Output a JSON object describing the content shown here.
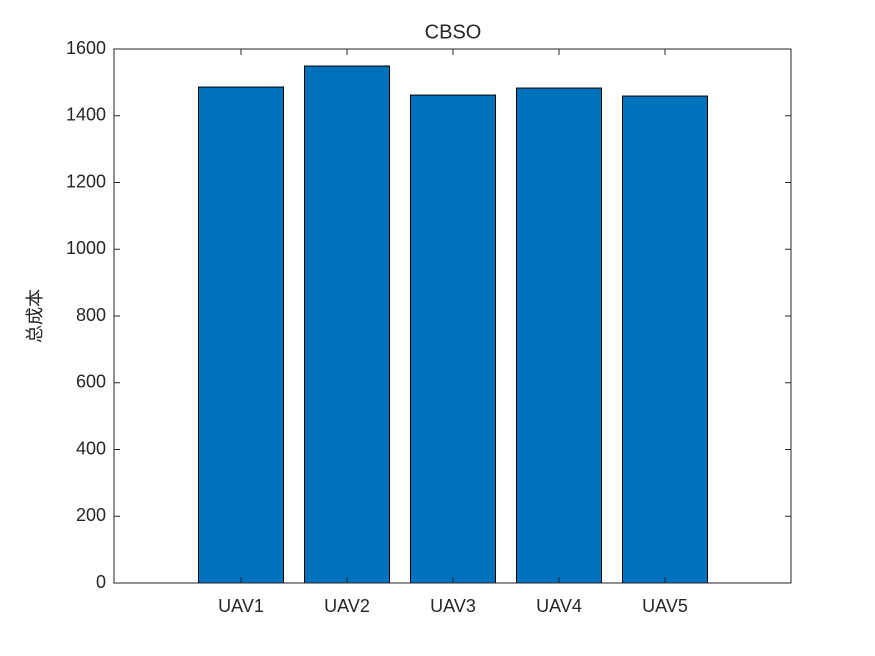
{
  "chart_data": {
    "type": "bar",
    "title": "CBSO",
    "y_label": "总成本",
    "categories": [
      "UAV1",
      "UAV2",
      "UAV3",
      "UAV4",
      "UAV5"
    ],
    "values": [
      1486,
      1549,
      1462,
      1483,
      1459
    ],
    "color": "#0072bd",
    "ylim": [
      0,
      1600
    ],
    "yticks": [
      0,
      200,
      400,
      600,
      800,
      1000,
      1200,
      1400,
      1600
    ],
    "grid": false
  }
}
